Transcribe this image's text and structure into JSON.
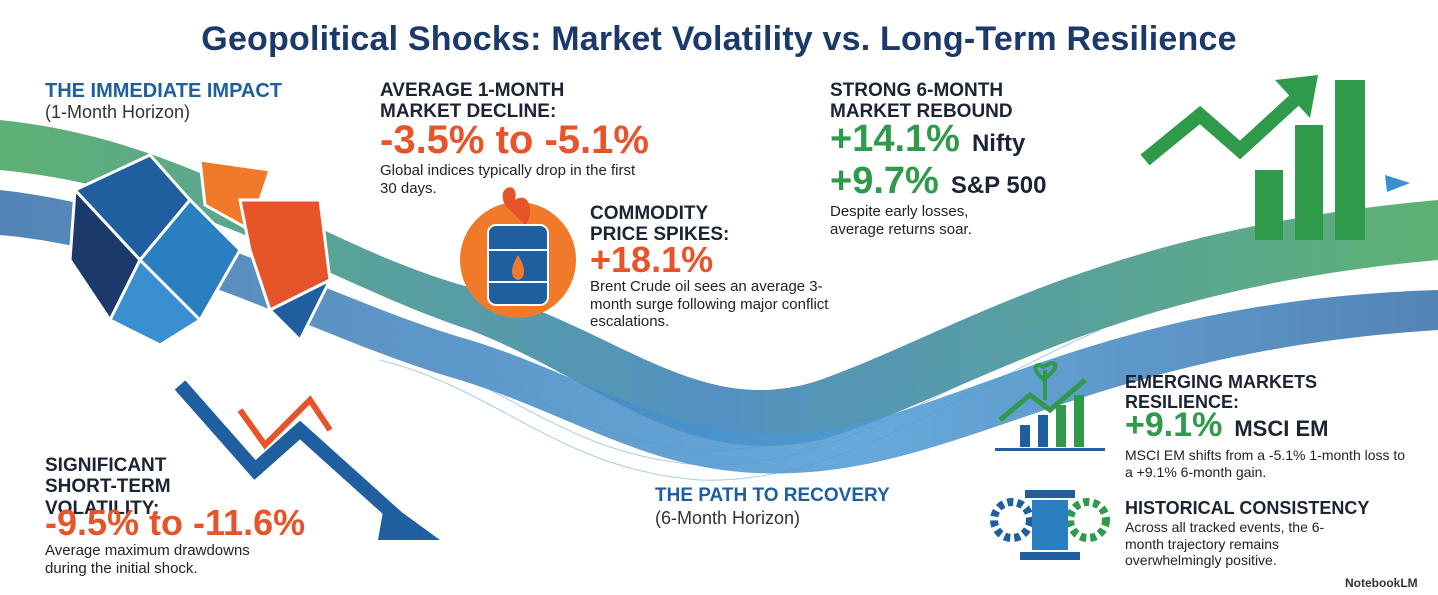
{
  "title": "Geopolitical Shocks: Market Volatility vs. Long-Term Resilience",
  "immediate_impact": {
    "heading": "THE IMMEDIATE IMPACT",
    "subheading": "(1-Month Horizon)"
  },
  "market_decline": {
    "heading": "AVERAGE 1-MONTH MARKET DECLINE:",
    "value": "-3.5% to -5.1%",
    "note": "Global indices typically drop in the first 30 days."
  },
  "commodity": {
    "heading": "COMMODITY PRICE SPIKES:",
    "value": "+18.1%",
    "note": "Brent Crude oil sees an average 3-month surge following major conflict escalations."
  },
  "rebound": {
    "heading": "STRONG 6-MONTH MARKET REBOUND",
    "items": [
      {
        "value": "+14.1%",
        "label": "Nifty"
      },
      {
        "value": "+9.7%",
        "label": "S&P 500"
      }
    ],
    "note": "Despite early losses, average returns soar."
  },
  "volatility": {
    "heading": "SIGNIFICANT SHORT-TERM VOLATILITY:",
    "value": "-9.5% to -11.6%",
    "note": "Average maximum drawdowns during the initial shock."
  },
  "recovery": {
    "heading": "THE PATH TO RECOVERY",
    "subheading": "(6-Month Horizon)"
  },
  "emerging": {
    "heading": "EMERGING MARKETS RESILIENCE:",
    "value": "+9.1%",
    "label": "MSCI EM",
    "note": "MSCI EM shifts from a -5.1% 1-month loss to a +9.1% 6-month gain."
  },
  "historical": {
    "heading": "HISTORICAL CONSISTENCY",
    "note": "Across all tracked events, the 6-month trajectory remains overwhelmingly positive."
  },
  "watermark": "NotebookLM"
}
